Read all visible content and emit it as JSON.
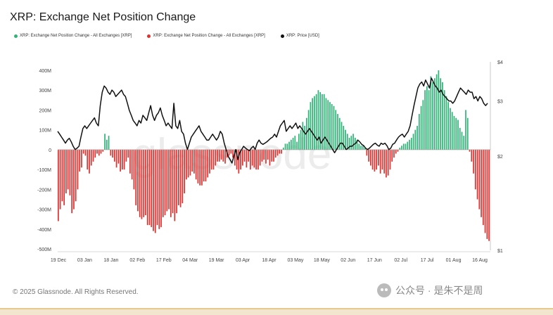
{
  "title": "XRP: Exchange Net Position Change",
  "legend": [
    {
      "label": "XRP: Exchange Net Position Change - All Exchanges [XRP]",
      "color": "#2fb377"
    },
    {
      "label": "XRP: Exchange Net Position Change - All Exchanges [XRP]",
      "color": "#e0312f"
    },
    {
      "label": "XRP: Price [USD]",
      "color": "#111111"
    }
  ],
  "footer": "© 2025 Glassnode. All Rights Reserved.",
  "watermark_text": "公众号 · 是朱不是周",
  "background_watermark": "glassnode",
  "chart_data": {
    "type": "bar",
    "positive_color": "#2fb377",
    "negative_color": "#e0312f",
    "price_color": "#111111",
    "left_axis": {
      "ticks": [
        400,
        300,
        200,
        100,
        0,
        -100,
        -200,
        -300,
        -400,
        -500
      ],
      "tick_labels": [
        "400M",
        "300M",
        "200M",
        "100M",
        "0",
        "-100M",
        "-200M",
        "-300M",
        "-400M",
        "-500M"
      ],
      "range": [
        -500,
        400
      ]
    },
    "right_axis": {
      "scale": "log",
      "ticks": [
        4,
        3,
        2,
        1
      ],
      "tick_labels": [
        "$4",
        "$3",
        "$2",
        "$1"
      ],
      "range": [
        1,
        4
      ]
    },
    "x_tick_labels": [
      "19 Dec",
      "03 Jan",
      "18 Jan",
      "02 Feb",
      "17 Feb",
      "04 Mar",
      "19 Mar",
      "03 Apr",
      "18 Apr",
      "03 May",
      "18 May",
      "02 Jun",
      "17 Jun",
      "02 Jul",
      "17 Jul",
      "01 Aug",
      "16 Aug"
    ],
    "net_position_change_M": [
      -360,
      -300,
      -260,
      -280,
      -220,
      -200,
      -230,
      -320,
      -300,
      -260,
      -200,
      -110,
      -90,
      -20,
      -30,
      -100,
      -120,
      -80,
      -60,
      -40,
      -20,
      -30,
      -20,
      -10,
      80,
      50,
      70,
      -30,
      -40,
      -60,
      -90,
      -70,
      -110,
      -100,
      -100,
      -60,
      -40,
      -120,
      -150,
      -200,
      -280,
      -310,
      -340,
      -350,
      -340,
      -330,
      -380,
      -380,
      -390,
      -410,
      -420,
      -380,
      -400,
      -390,
      -340,
      -330,
      -310,
      -300,
      -340,
      -320,
      -360,
      -320,
      -280,
      -290,
      -270,
      -220,
      -150,
      -140,
      -130,
      -110,
      -120,
      -150,
      -170,
      -180,
      -180,
      -160,
      -160,
      -140,
      -120,
      -100,
      -100,
      -80,
      -60,
      -60,
      -50,
      -60,
      -70,
      -40,
      -30,
      -20,
      -40,
      -80,
      -100,
      -120,
      -100,
      -80,
      -60,
      -90,
      -60,
      -100,
      -80,
      -90,
      -100,
      -100,
      -80,
      -60,
      -50,
      -70,
      -50,
      -80,
      -60,
      -60,
      -40,
      -30,
      -20,
      -20,
      10,
      30,
      30,
      40,
      50,
      60,
      70,
      40,
      80,
      100,
      140,
      120,
      160,
      200,
      240,
      260,
      270,
      280,
      300,
      290,
      280,
      280,
      260,
      250,
      240,
      230,
      220,
      200,
      180,
      160,
      140,
      120,
      100,
      80,
      60,
      70,
      80,
      60,
      50,
      30,
      20,
      20,
      10,
      -30,
      -60,
      -80,
      -100,
      -110,
      -100,
      -80,
      -120,
      -100,
      -120,
      -140,
      -130,
      -100,
      -60,
      -40,
      -20,
      -10,
      10,
      20,
      30,
      30,
      40,
      50,
      60,
      80,
      100,
      120,
      180,
      220,
      250,
      300,
      320,
      300,
      370,
      340,
      360,
      380,
      400,
      360,
      340,
      300,
      270,
      240,
      210,
      190,
      170,
      160,
      150,
      110,
      90,
      70,
      200,
      160,
      -10,
      -60,
      -120,
      -200,
      -250,
      -300,
      -340,
      -380,
      -420,
      -450,
      -460
    ],
    "price_usd": [
      2.4,
      2.35,
      2.3,
      2.25,
      2.2,
      2.25,
      2.28,
      2.22,
      2.15,
      2.1,
      2.12,
      2.15,
      2.3,
      2.45,
      2.5,
      2.45,
      2.5,
      2.55,
      2.6,
      2.65,
      2.55,
      2.5,
      2.9,
      3.2,
      3.35,
      3.3,
      3.2,
      3.15,
      3.25,
      3.2,
      3.1,
      3.15,
      3.2,
      3.25,
      3.15,
      3.1,
      2.95,
      2.8,
      2.7,
      2.6,
      2.55,
      2.5,
      2.6,
      2.55,
      2.7,
      2.65,
      2.6,
      2.75,
      2.9,
      2.7,
      2.6,
      2.7,
      2.75,
      2.85,
      2.7,
      2.6,
      2.5,
      2.55,
      2.5,
      2.45,
      2.95,
      2.5,
      2.45,
      2.6,
      2.4,
      2.35,
      2.2,
      2.1,
      2.2,
      2.3,
      2.35,
      2.4,
      2.45,
      2.5,
      2.4,
      2.35,
      2.3,
      2.25,
      2.25,
      2.3,
      2.35,
      2.3,
      2.25,
      2.3,
      2.4,
      2.35,
      2.2,
      2.1,
      2.0,
      1.95,
      1.9,
      2.0,
      2.1,
      1.95,
      2.05,
      2.1,
      2.15,
      2.12,
      2.1,
      2.08,
      2.12,
      2.15,
      2.1,
      2.2,
      2.25,
      2.2,
      2.18,
      2.2,
      2.22,
      2.25,
      2.28,
      2.3,
      2.35,
      2.3,
      2.4,
      2.5,
      2.55,
      2.6,
      2.4,
      2.45,
      2.5,
      2.45,
      2.5,
      2.55,
      2.45,
      2.5,
      2.45,
      2.4,
      2.35,
      2.4,
      2.45,
      2.4,
      2.35,
      2.3,
      2.25,
      2.3,
      2.2,
      2.25,
      2.3,
      2.25,
      2.2,
      2.15,
      2.1,
      2.05,
      2.1,
      2.15,
      2.2,
      2.2,
      2.15,
      2.1,
      2.12,
      2.15,
      2.15,
      2.18,
      2.2,
      2.25,
      2.22,
      2.18,
      2.16,
      2.12,
      2.1,
      2.12,
      2.15,
      2.18,
      2.2,
      2.17,
      2.15,
      2.2,
      2.18,
      2.2,
      2.16,
      2.1,
      2.12,
      2.18,
      2.2,
      2.25,
      2.3,
      2.33,
      2.35,
      2.3,
      2.35,
      2.4,
      2.5,
      2.7,
      2.9,
      3.1,
      3.3,
      3.4,
      3.45,
      3.35,
      3.5,
      3.4,
      3.3,
      3.55,
      3.45,
      3.35,
      3.3,
      3.2,
      3.25,
      3.15,
      3.1,
      3.05,
      3.0,
      3.0,
      2.95,
      3.0,
      3.1,
      3.2,
      3.3,
      3.25,
      3.2,
      3.15,
      3.25,
      3.2,
      3.2,
      3.05,
      3.1,
      3.0,
      3.1,
      3.05,
      2.95,
      2.9,
      2.95
    ]
  }
}
